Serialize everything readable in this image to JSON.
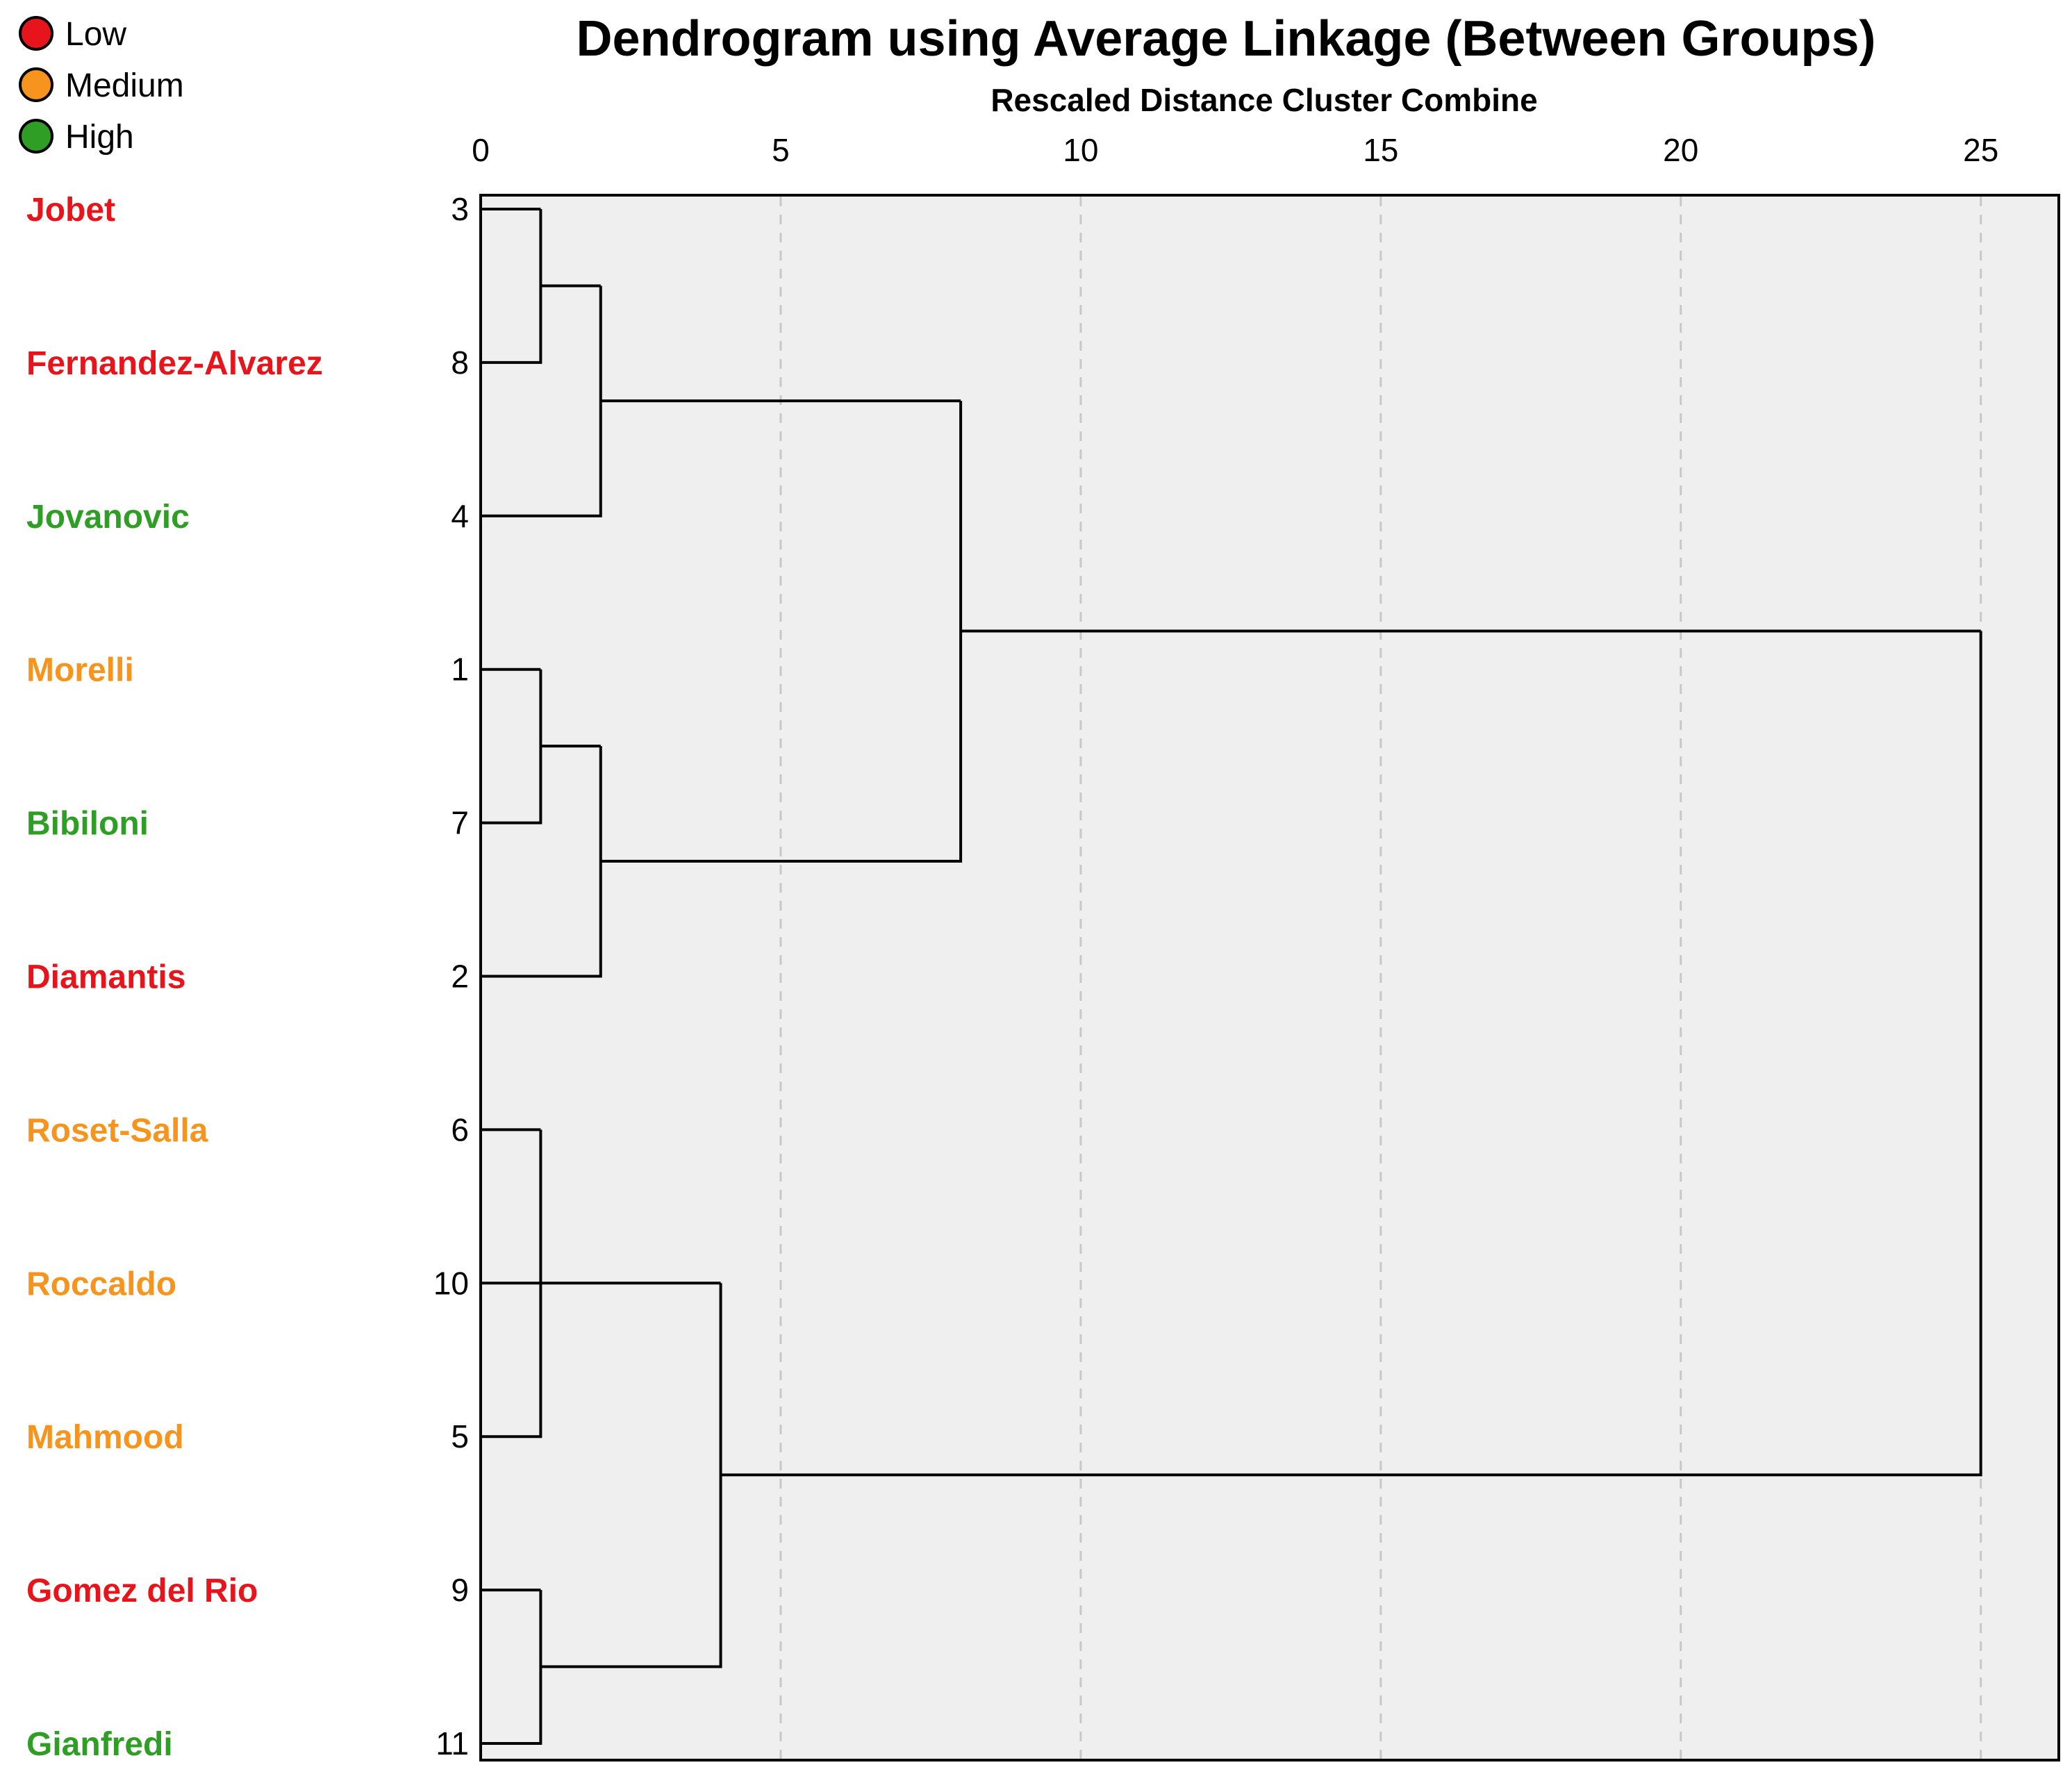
{
  "chart_data": {
    "type": "dendrogram",
    "title": "Dendrogram using Average Linkage (Between Groups)",
    "xlabel": "Rescaled Distance Cluster Combine",
    "xlim": [
      0,
      26.3
    ],
    "xticks": [
      0,
      5,
      10,
      15,
      20,
      25
    ],
    "grid": true,
    "legend": {
      "position": "top-left",
      "items": [
        {
          "key": "low",
          "label": "Low",
          "color": "#e8141b"
        },
        {
          "key": "medium",
          "label": "Medium",
          "color": "#f7941d"
        },
        {
          "key": "high",
          "label": "High",
          "color": "#2e9e24"
        }
      ]
    },
    "leaves": [
      {
        "id": 3,
        "name": "Jobet",
        "group": "low"
      },
      {
        "id": 8,
        "name": "Fernandez-Alvarez",
        "group": "low"
      },
      {
        "id": 4,
        "name": "Jovanovic",
        "group": "high"
      },
      {
        "id": 1,
        "name": "Morelli",
        "group": "medium"
      },
      {
        "id": 7,
        "name": "Bibiloni",
        "group": "high"
      },
      {
        "id": 2,
        "name": "Diamantis",
        "group": "low"
      },
      {
        "id": 6,
        "name": "Roset-Salla",
        "group": "medium"
      },
      {
        "id": 10,
        "name": "Roccaldo",
        "group": "medium"
      },
      {
        "id": 5,
        "name": "Mahmood",
        "group": "medium"
      },
      {
        "id": 9,
        "name": "Gomez del Rio",
        "group": "low"
      },
      {
        "id": 11,
        "name": "Gianfredi",
        "group": "high"
      }
    ],
    "merges": [
      {
        "id": "c1",
        "left": 3,
        "right": 8,
        "distance": 1
      },
      {
        "id": "c2",
        "left": "c1",
        "right": 4,
        "distance": 2
      },
      {
        "id": "c3",
        "left": 1,
        "right": 7,
        "distance": 1
      },
      {
        "id": "c4",
        "left": "c3",
        "right": 2,
        "distance": 2
      },
      {
        "id": "c5",
        "left": "c2",
        "right": "c4",
        "distance": 8
      },
      {
        "id": "c6",
        "left": 6,
        "right": 5,
        "distance": 1
      },
      {
        "id": "c7",
        "left": 9,
        "right": 11,
        "distance": 1
      },
      {
        "id": "c8",
        "left": 10,
        "right": "c7",
        "distance": 4,
        "left_y_from": "c6"
      },
      {
        "id": "c9",
        "left": "c5",
        "right": "c8",
        "distance": 25
      }
    ]
  }
}
